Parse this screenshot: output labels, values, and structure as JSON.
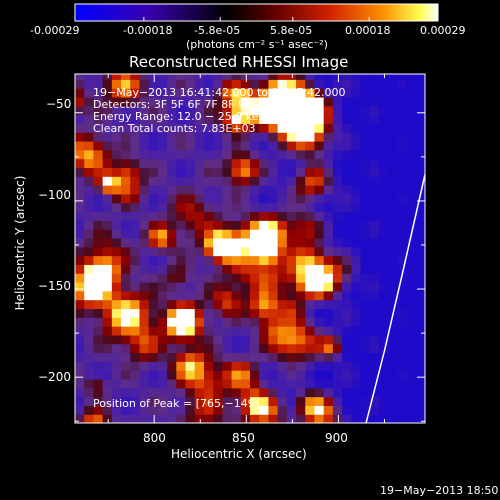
{
  "colorbar": {
    "ticks": [
      -0.00029,
      -0.00018,
      -5.8e-05,
      5.8e-05,
      0.00018,
      0.00029
    ],
    "tick_labels": [
      "-0.00029",
      "-0.00018",
      "-5.8e-05",
      "5.8e-05",
      "0.00018",
      "0.00029"
    ],
    "unit_label": "(photons cm⁻² s⁻¹ asec⁻²)",
    "range": [
      -0.00029,
      0.00029
    ],
    "colors": [
      "#0000ff",
      "#4000a0",
      "#000000",
      "#600000",
      "#c02000",
      "#ff8000",
      "#ffff40",
      "#ffffff"
    ]
  },
  "chart_data": {
    "type": "heatmap",
    "title": "Reconstructed RHESSI Image",
    "xlabel": "Heliocentric X (arcsec)",
    "ylabel": "Heliocentric Y (arcsec)",
    "xlim": [
      757,
      947
    ],
    "ylim": [
      -226,
      -28
    ],
    "x_ticks": [
      800,
      850,
      900
    ],
    "x_tick_labels": [
      "800",
      "850",
      "900"
    ],
    "y_ticks": [
      -50,
      -100,
      -150,
      -200
    ],
    "y_tick_labels": [
      "−50",
      "−100",
      "−150",
      "−200"
    ],
    "annotations": [
      "19−May−2013 16:41:42.000 to 16:47:42.000",
      "Detectors: 3F 5F 6F 7F 8F 9F, Att 0",
      "Energy Range: 12.0 − 25.0 keV",
      "Clean     Total counts: 7.83E+03"
    ],
    "peak_label": "Position of Peak = [765,−149]",
    "peak": [
      765,
      -149
    ],
    "limb_curve": [
      [
        947,
        -85
      ],
      [
        935,
        -140
      ],
      [
        925,
        -185
      ],
      [
        915,
        -226
      ]
    ]
  },
  "footer": {
    "timestamp": "19−May−2013 18:50"
  }
}
